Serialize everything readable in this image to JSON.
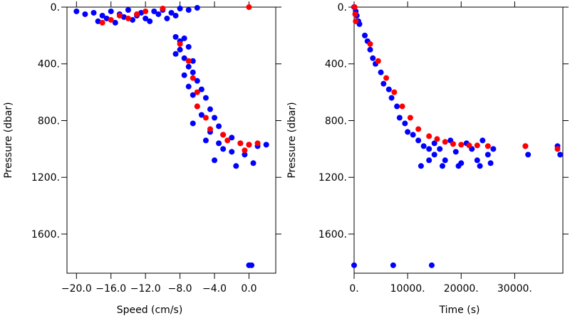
{
  "chart_data": [
    {
      "type": "scatter",
      "xlabel": "Speed (cm/s)",
      "ylabel": "Pressure (dbar)",
      "xlim": [
        -21.1,
        3.1
      ],
      "ylim": [
        1876,
        0
      ],
      "xticks": [
        {
          "value": -20,
          "label": "−20.0"
        },
        {
          "value": -16,
          "label": "−16.0"
        },
        {
          "value": -12,
          "label": "−12.0"
        },
        {
          "value": -8,
          "label": "−8.0"
        },
        {
          "value": -4,
          "label": "−4.0"
        },
        {
          "value": 0,
          "label": "0.0"
        }
      ],
      "yticks": [
        {
          "value": 0,
          "label": "0."
        },
        {
          "value": 400,
          "label": "400."
        },
        {
          "value": 800,
          "label": "800."
        },
        {
          "value": 1200,
          "label": "1200."
        },
        {
          "value": 1600,
          "label": "1600."
        }
      ],
      "series": [
        {
          "color": "#0000ff",
          "x": [
            -20,
            -19,
            -18,
            -17,
            -16.5,
            -16,
            -15,
            -14.5,
            -14,
            -13,
            -12.5,
            -12,
            -11,
            -10.5,
            -10,
            -9,
            -8,
            -7,
            -6,
            -17.5,
            -15.5,
            -13.5,
            -11.5,
            -9.5,
            -8.5,
            -8.5,
            -8,
            -7.5,
            -8,
            -7,
            -8.5,
            -7.5,
            -7,
            -6.5,
            -7.5,
            -6.5,
            -6,
            -7,
            -5.5,
            -6.5,
            -5,
            -6,
            -4.5,
            -5.5,
            -4,
            -6.5,
            -3.5,
            -4.5,
            -3,
            -2,
            -5,
            -3.5,
            -1,
            0,
            1,
            -2,
            -0.5,
            -4,
            0.5,
            -1.5,
            2,
            -3,
            0,
            0.3
          ],
          "values": [
            30,
            50,
            40,
            60,
            80,
            30,
            50,
            70,
            20,
            60,
            40,
            80,
            30,
            50,
            20,
            40,
            10,
            20,
            5,
            100,
            110,
            90,
            100,
            80,
            60,
            210,
            240,
            220,
            300,
            280,
            330,
            360,
            420,
            380,
            480,
            460,
            520,
            560,
            580,
            620,
            640,
            700,
            720,
            760,
            780,
            820,
            840,
            880,
            900,
            920,
            940,
            960,
            960,
            970,
            980,
            1020,
            1040,
            1080,
            1100,
            1120,
            970,
            1000,
            1820,
            1820
          ]
        },
        {
          "color": "#ff0000",
          "x": [
            -17,
            -16,
            -15,
            -14,
            -13,
            -12,
            -10,
            0,
            -8,
            -7,
            -6.5,
            -6,
            -6,
            -5,
            -4.5,
            -3,
            -2.5,
            -1,
            -0.5,
            0,
            1
          ],
          "values": [
            110,
            90,
            60,
            80,
            50,
            30,
            10,
            0,
            260,
            380,
            500,
            600,
            700,
            780,
            860,
            900,
            940,
            960,
            1010,
            970,
            960
          ]
        }
      ]
    },
    {
      "type": "scatter",
      "xlabel": "Time (s)",
      "ylabel": "Pressure (dbar)",
      "xlim": [
        0,
        39000
      ],
      "ylim": [
        1876,
        0
      ],
      "xticks": [
        {
          "value": 0,
          "label": "0."
        },
        {
          "value": 10000,
          "label": "10000."
        },
        {
          "value": 20000,
          "label": "20000."
        },
        {
          "value": 30000,
          "label": "30000."
        }
      ],
      "yticks": [
        {
          "value": 0,
          "label": "0."
        },
        {
          "value": 400,
          "label": "400."
        },
        {
          "value": 800,
          "label": "800."
        },
        {
          "value": 1200,
          "label": "1200."
        },
        {
          "value": 1600,
          "label": "1600."
        }
      ],
      "series": [
        {
          "color": "#0000ff",
          "x": [
            0,
            300,
            500,
            800,
            1000,
            2000,
            2500,
            3000,
            3500,
            4000,
            5000,
            5500,
            6500,
            7000,
            8000,
            8500,
            9500,
            10000,
            11000,
            12000,
            13000,
            14000,
            15000,
            15000,
            16000,
            17000,
            18000,
            19000,
            20000,
            21000,
            22000,
            23000,
            24000,
            25000,
            25500,
            26000,
            32000,
            32500,
            38000,
            38500,
            12500,
            0,
            7300,
            14500,
            14000,
            16500,
            19500,
            23500
          ],
          "values": [
            0,
            30,
            60,
            100,
            120,
            200,
            240,
            300,
            360,
            400,
            460,
            540,
            580,
            640,
            700,
            780,
            820,
            880,
            900,
            940,
            980,
            1000,
            1040,
            960,
            1000,
            1080,
            940,
            1020,
            1100,
            960,
            1000,
            1080,
            940,
            1040,
            1100,
            1000,
            980,
            1040,
            980,
            1040,
            1120,
            1820,
            1820,
            1820,
            1080,
            1120,
            1120,
            1120
          ]
        },
        {
          "color": "#ff0000",
          "x": [
            100,
            200,
            300,
            3000,
            4500,
            6000,
            7500,
            9000,
            10500,
            12000,
            14000,
            15500,
            17000,
            18500,
            20000,
            21500,
            23000,
            25000,
            32000,
            38000
          ],
          "values": [
            0,
            50,
            100,
            260,
            380,
            500,
            600,
            700,
            780,
            860,
            910,
            930,
            950,
            965,
            970,
            975,
            975,
            980,
            980,
            1000
          ]
        }
      ]
    }
  ]
}
